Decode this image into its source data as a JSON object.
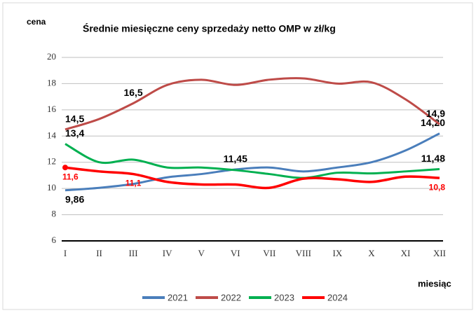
{
  "chart_data": {
    "type": "line",
    "title": "Średnie miesięczne ceny sprzedaży netto OMP w zł/kg",
    "y_label": "cena",
    "x_label": "miesiąc",
    "categories": [
      "I",
      "II",
      "III",
      "IV",
      "V",
      "VI",
      "VII",
      "VIII",
      "IX",
      "X",
      "XI",
      "XII"
    ],
    "ylim": [
      6,
      20
    ],
    "yticks": [
      6,
      8,
      10,
      12,
      14,
      16,
      18,
      20
    ],
    "grid": true,
    "legend": "bottom",
    "series": [
      {
        "name": "2021",
        "color": "#4a7ebb",
        "label_color": "#000000",
        "values": [
          9.86,
          10.05,
          10.35,
          10.85,
          11.1,
          11.45,
          11.6,
          11.3,
          11.6,
          12.0,
          12.9,
          14.2
        ],
        "value_labels": [
          "9,86",
          null,
          null,
          null,
          null,
          "11,45",
          null,
          null,
          null,
          null,
          null,
          "14,20"
        ]
      },
      {
        "name": "2022",
        "color": "#be4b48",
        "label_color": "#000000",
        "values": [
          14.5,
          15.3,
          16.5,
          17.9,
          18.3,
          17.9,
          18.3,
          18.4,
          18.0,
          18.1,
          16.8,
          14.9
        ],
        "value_labels": [
          "14,5",
          null,
          "16,5",
          null,
          null,
          null,
          null,
          null,
          null,
          null,
          null,
          "14,9"
        ]
      },
      {
        "name": "2023",
        "color": "#00b050",
        "label_color": "#000000",
        "values": [
          13.4,
          12.0,
          12.2,
          11.6,
          11.6,
          11.4,
          11.1,
          10.8,
          11.2,
          11.15,
          11.3,
          11.48
        ],
        "value_labels": [
          "13,4",
          null,
          null,
          null,
          null,
          null,
          null,
          null,
          null,
          null,
          null,
          "11,48"
        ]
      },
      {
        "name": "2024",
        "color": "#ff0000",
        "label_color": "#ff0000",
        "values": [
          11.6,
          11.3,
          11.1,
          10.5,
          10.3,
          10.3,
          10.05,
          10.75,
          10.7,
          10.5,
          10.9,
          10.8
        ],
        "value_labels": [
          "11,6",
          null,
          "11,1",
          null,
          null,
          null,
          null,
          null,
          null,
          null,
          null,
          "10,8"
        ]
      }
    ]
  }
}
